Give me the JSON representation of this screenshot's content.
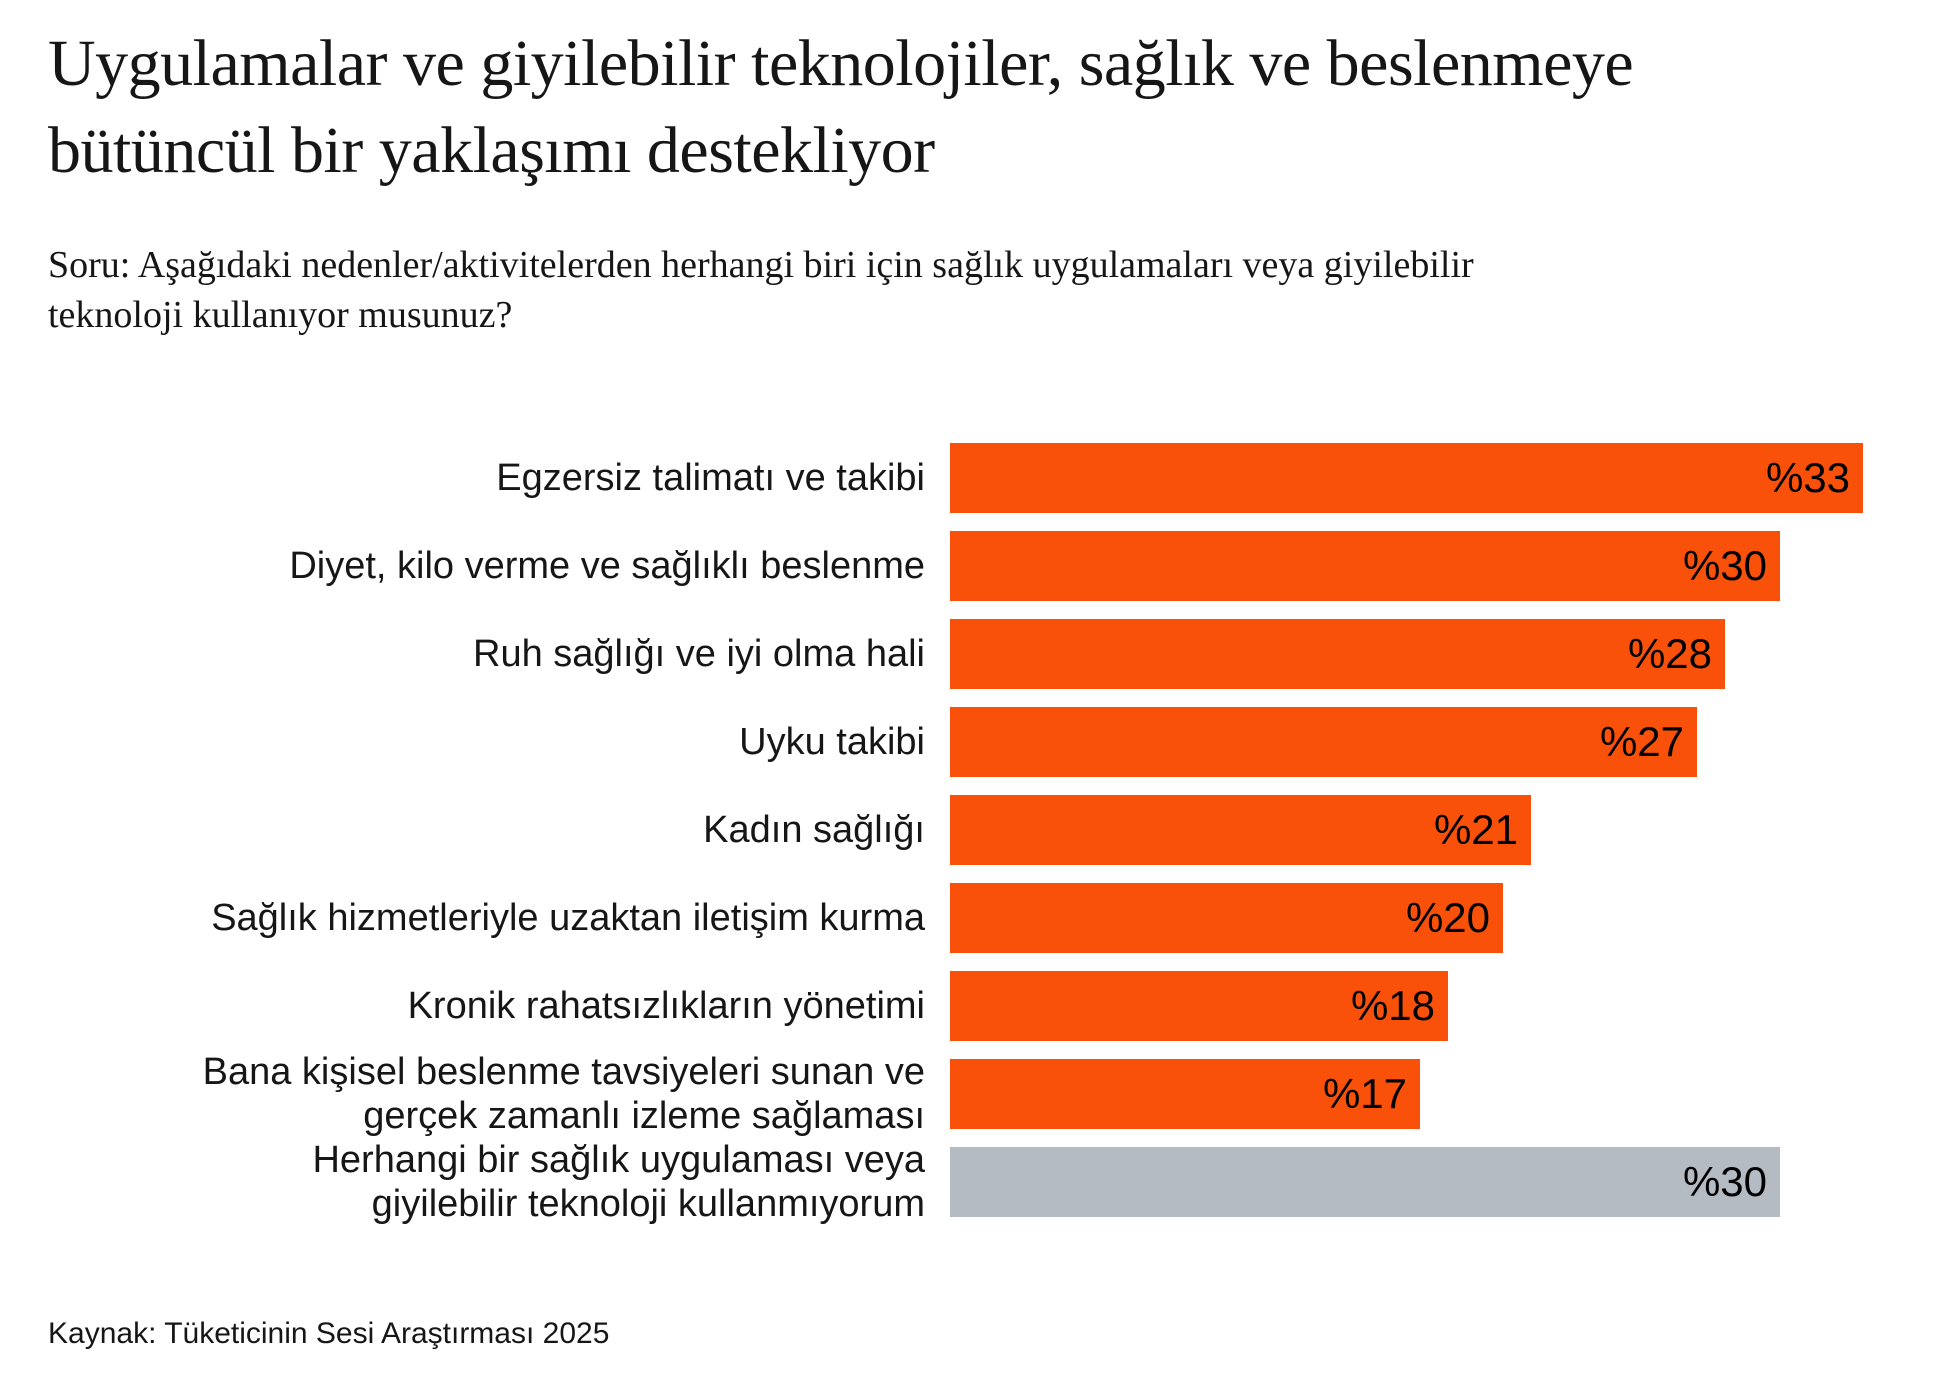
{
  "page": {
    "title": "Uygulamalar ve giyilebilir teknolojiler, sağlık ve beslenmeye bütüncül bir yaklaşımı destekliyor",
    "question": "Soru: Aşağıdaki nedenler/aktivitelerden herhangi biri için sağlık uygulamaları veya giyilebilir teknoloji kullanıyor musunuz?",
    "source": "Kaynak: Tüketicinin Sesi Araştırması 2025"
  },
  "colors": {
    "bar": "#F95109",
    "bar_muted": "#B5BBC2",
    "text": "#161616",
    "value_text": "#000000",
    "background": "#FFFFFF"
  },
  "chart_data": {
    "type": "bar",
    "orientation": "horizontal",
    "unit": "percent",
    "value_prefix": "%",
    "xlim": [
      0,
      33
    ],
    "grid": false,
    "legend": false,
    "axis_labels": false,
    "categories": [
      "Egzersiz talimatı ve takibi",
      "Diyet, kilo verme ve sağlıklı beslenme",
      "Ruh sağlığı ve iyi olma hali",
      "Uyku takibi",
      "Kadın sağlığı",
      "Sağlık hizmetleriyle uzaktan iletişim kurma",
      "Kronik rahatsızlıkların yönetimi",
      "Bana kişisel beslenme tavsiyeleri sunan ve gerçek zamanlı izleme sağlaması",
      "Herhangi bir sağlık uygulaması veya giyilebilir teknoloji kullanmıyorum"
    ],
    "values": [
      33,
      30,
      28,
      27,
      21,
      20,
      18,
      17,
      30
    ],
    "rows": [
      {
        "label": "Egzersiz talimatı ve takibi",
        "value": 33,
        "value_label": "%33",
        "color": "bar"
      },
      {
        "label": "Diyet, kilo verme ve sağlıklı beslenme",
        "value": 30,
        "value_label": "%30",
        "color": "bar"
      },
      {
        "label": "Ruh sağlığı ve iyi olma hali",
        "value": 28,
        "value_label": "%28",
        "color": "bar"
      },
      {
        "label": "Uyku takibi",
        "value": 27,
        "value_label": "%27",
        "color": "bar"
      },
      {
        "label": "Kadın sağlığı",
        "value": 21,
        "value_label": "%21",
        "color": "bar"
      },
      {
        "label": "Sağlık hizmetleriyle uzaktan iletişim kurma",
        "value": 20,
        "value_label": "%20",
        "color": "bar"
      },
      {
        "label": "Kronik rahatsızlıkların yönetimi",
        "value": 18,
        "value_label": "%18",
        "color": "bar"
      },
      {
        "label": "Bana kişisel beslenme tavsiyeleri sunan ve",
        "label2": "gerçek zamanlı izleme sağlaması",
        "value": 17,
        "value_label": "%17",
        "color": "bar"
      },
      {
        "label": "Herhangi bir sağlık uygulaması veya",
        "label2": "giyilebilir teknoloji kullanmıyorum",
        "value": 30,
        "value_label": "%30",
        "color": "bar_muted"
      }
    ]
  }
}
